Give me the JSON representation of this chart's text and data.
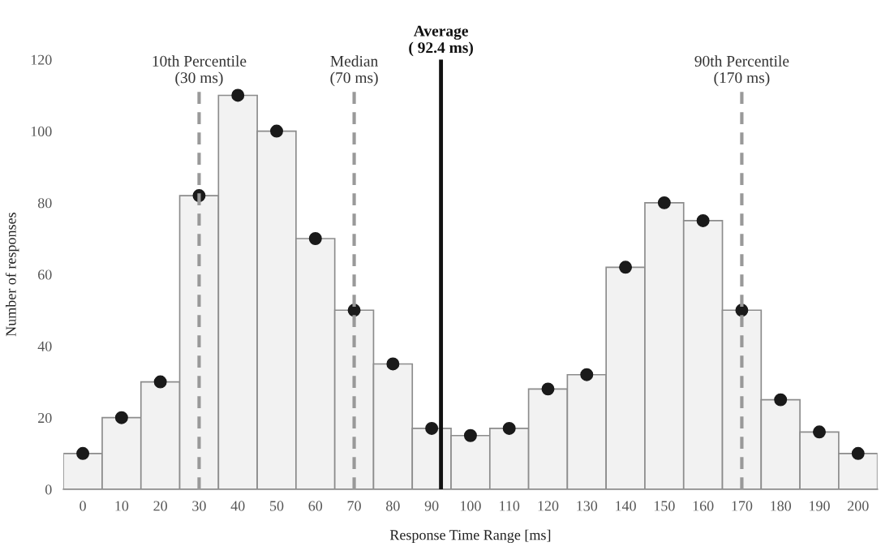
{
  "chart_data": {
    "type": "histogram",
    "xlabel": "Response Time Range [ms]",
    "ylabel": "Number of responses",
    "bins": [
      -5,
      5,
      15,
      25,
      35,
      45,
      55,
      65,
      75,
      85,
      95,
      105,
      115,
      125,
      135,
      145,
      155,
      165,
      175,
      185,
      195,
      205
    ],
    "values": [
      10,
      20,
      30,
      82,
      110,
      100,
      70,
      50,
      35,
      17,
      15,
      17,
      28,
      32,
      62,
      80,
      75,
      50,
      25,
      16,
      10
    ],
    "color": "#f2f2f2",
    "series": [
      {
        "type": "scatter",
        "color": "#1a1a1a",
        "marker": "circle",
        "x": [
          0,
          10,
          20,
          30,
          40,
          50,
          60,
          70,
          80,
          90,
          100,
          110,
          120,
          130,
          140,
          150,
          160,
          170,
          180,
          190,
          200
        ],
        "values": [
          10,
          20,
          30,
          82,
          110,
          100,
          70,
          50,
          35,
          17,
          15,
          17,
          28,
          32,
          62,
          80,
          75,
          50,
          25,
          16,
          10
        ]
      }
    ],
    "xlim": [
      -5,
      205
    ],
    "xticks": [
      0,
      10,
      20,
      30,
      40,
      50,
      60,
      70,
      80,
      90,
      100,
      110,
      120,
      130,
      140,
      150,
      160,
      170,
      180,
      190,
      200
    ],
    "ylim": [
      0,
      120
    ],
    "yticks": [
      0,
      20,
      40,
      60,
      80,
      100,
      120
    ],
    "grid": false,
    "legend": false,
    "ref_lines": [
      {
        "axis": "x",
        "value": 30,
        "label": "10th Percentile\n(30 ms)",
        "color": "#999999",
        "line_style": "dashed"
      },
      {
        "axis": "x",
        "value": 70,
        "label": "Median\n(70 ms)",
        "color": "#999999",
        "line_style": "dashed"
      },
      {
        "axis": "x",
        "value": 92.4,
        "label": "Average\n( 92.4 ms)",
        "color": "#111111",
        "line_style": "solid"
      },
      {
        "axis": "x",
        "value": 170,
        "label": "90th Percentile\n(170 ms)",
        "color": "#999999",
        "line_style": "dashed"
      }
    ]
  }
}
